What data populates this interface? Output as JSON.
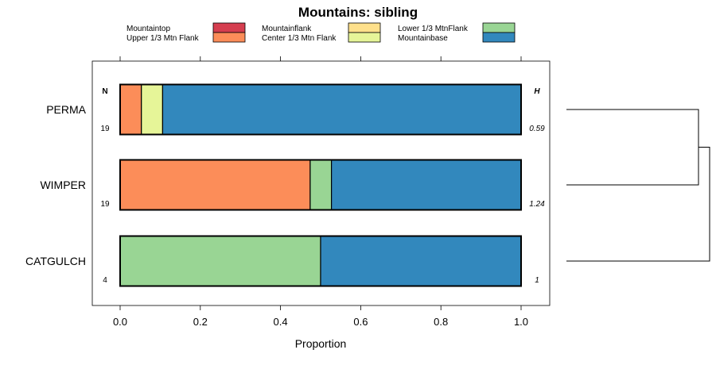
{
  "chart_data": {
    "type": "bar",
    "orientation": "horizontal",
    "stacked": true,
    "title": "Mountains: sibling",
    "xlabel": "Proportion",
    "ylabel": "",
    "xlim": [
      -0.07,
      1.07
    ],
    "x_ticks": [
      0.0,
      0.2,
      0.4,
      0.6,
      0.8,
      1.0
    ],
    "x_tick_labels": [
      "0.0",
      "0.2",
      "0.4",
      "0.6",
      "0.8",
      "1.0"
    ],
    "n_header": "N",
    "h_header": "H",
    "categories": [
      "PERMA",
      "WIMPER",
      "CATGULCH"
    ],
    "n_values": [
      "19",
      "19",
      "4"
    ],
    "h_values": [
      "0.59",
      "1.24",
      "1"
    ],
    "legend": [
      {
        "name": "Mountaintop",
        "color": "#d53e4f"
      },
      {
        "name": "Upper 1/3 Mtn Flank",
        "color": "#fc8d59"
      },
      {
        "name": "Mountainflank",
        "color": "#fee08b"
      },
      {
        "name": "Center 1/3 Mtn Flank",
        "color": "#e6f598"
      },
      {
        "name": "Lower 1/3 MtnFlank",
        "color": "#99d594"
      },
      {
        "name": "Mountainbase",
        "color": "#3288bd"
      }
    ],
    "series": [
      {
        "name": "Mountaintop",
        "color": "#d53e4f",
        "values": [
          0,
          0,
          0
        ]
      },
      {
        "name": "Upper 1/3 Mtn Flank",
        "color": "#fc8d59",
        "values": [
          0.053,
          0.474,
          0
        ]
      },
      {
        "name": "Mountainflank",
        "color": "#fee08b",
        "values": [
          0,
          0,
          0
        ]
      },
      {
        "name": "Center 1/3 Mtn Flank",
        "color": "#e6f598",
        "values": [
          0.053,
          0,
          0
        ]
      },
      {
        "name": "Lower 1/3 MtnFlank",
        "color": "#99d594",
        "values": [
          0,
          0.053,
          0.5
        ]
      },
      {
        "name": "Mountainbase",
        "color": "#3288bd",
        "values": [
          0.894,
          0.473,
          0.5
        ]
      }
    ],
    "dendrogram": {
      "leaves": [
        "PERMA",
        "WIMPER",
        "CATGULCH"
      ],
      "merges": [
        [
          "PERMA",
          "WIMPER"
        ],
        [
          "PERMA+WIMPER",
          "CATGULCH"
        ]
      ]
    }
  }
}
